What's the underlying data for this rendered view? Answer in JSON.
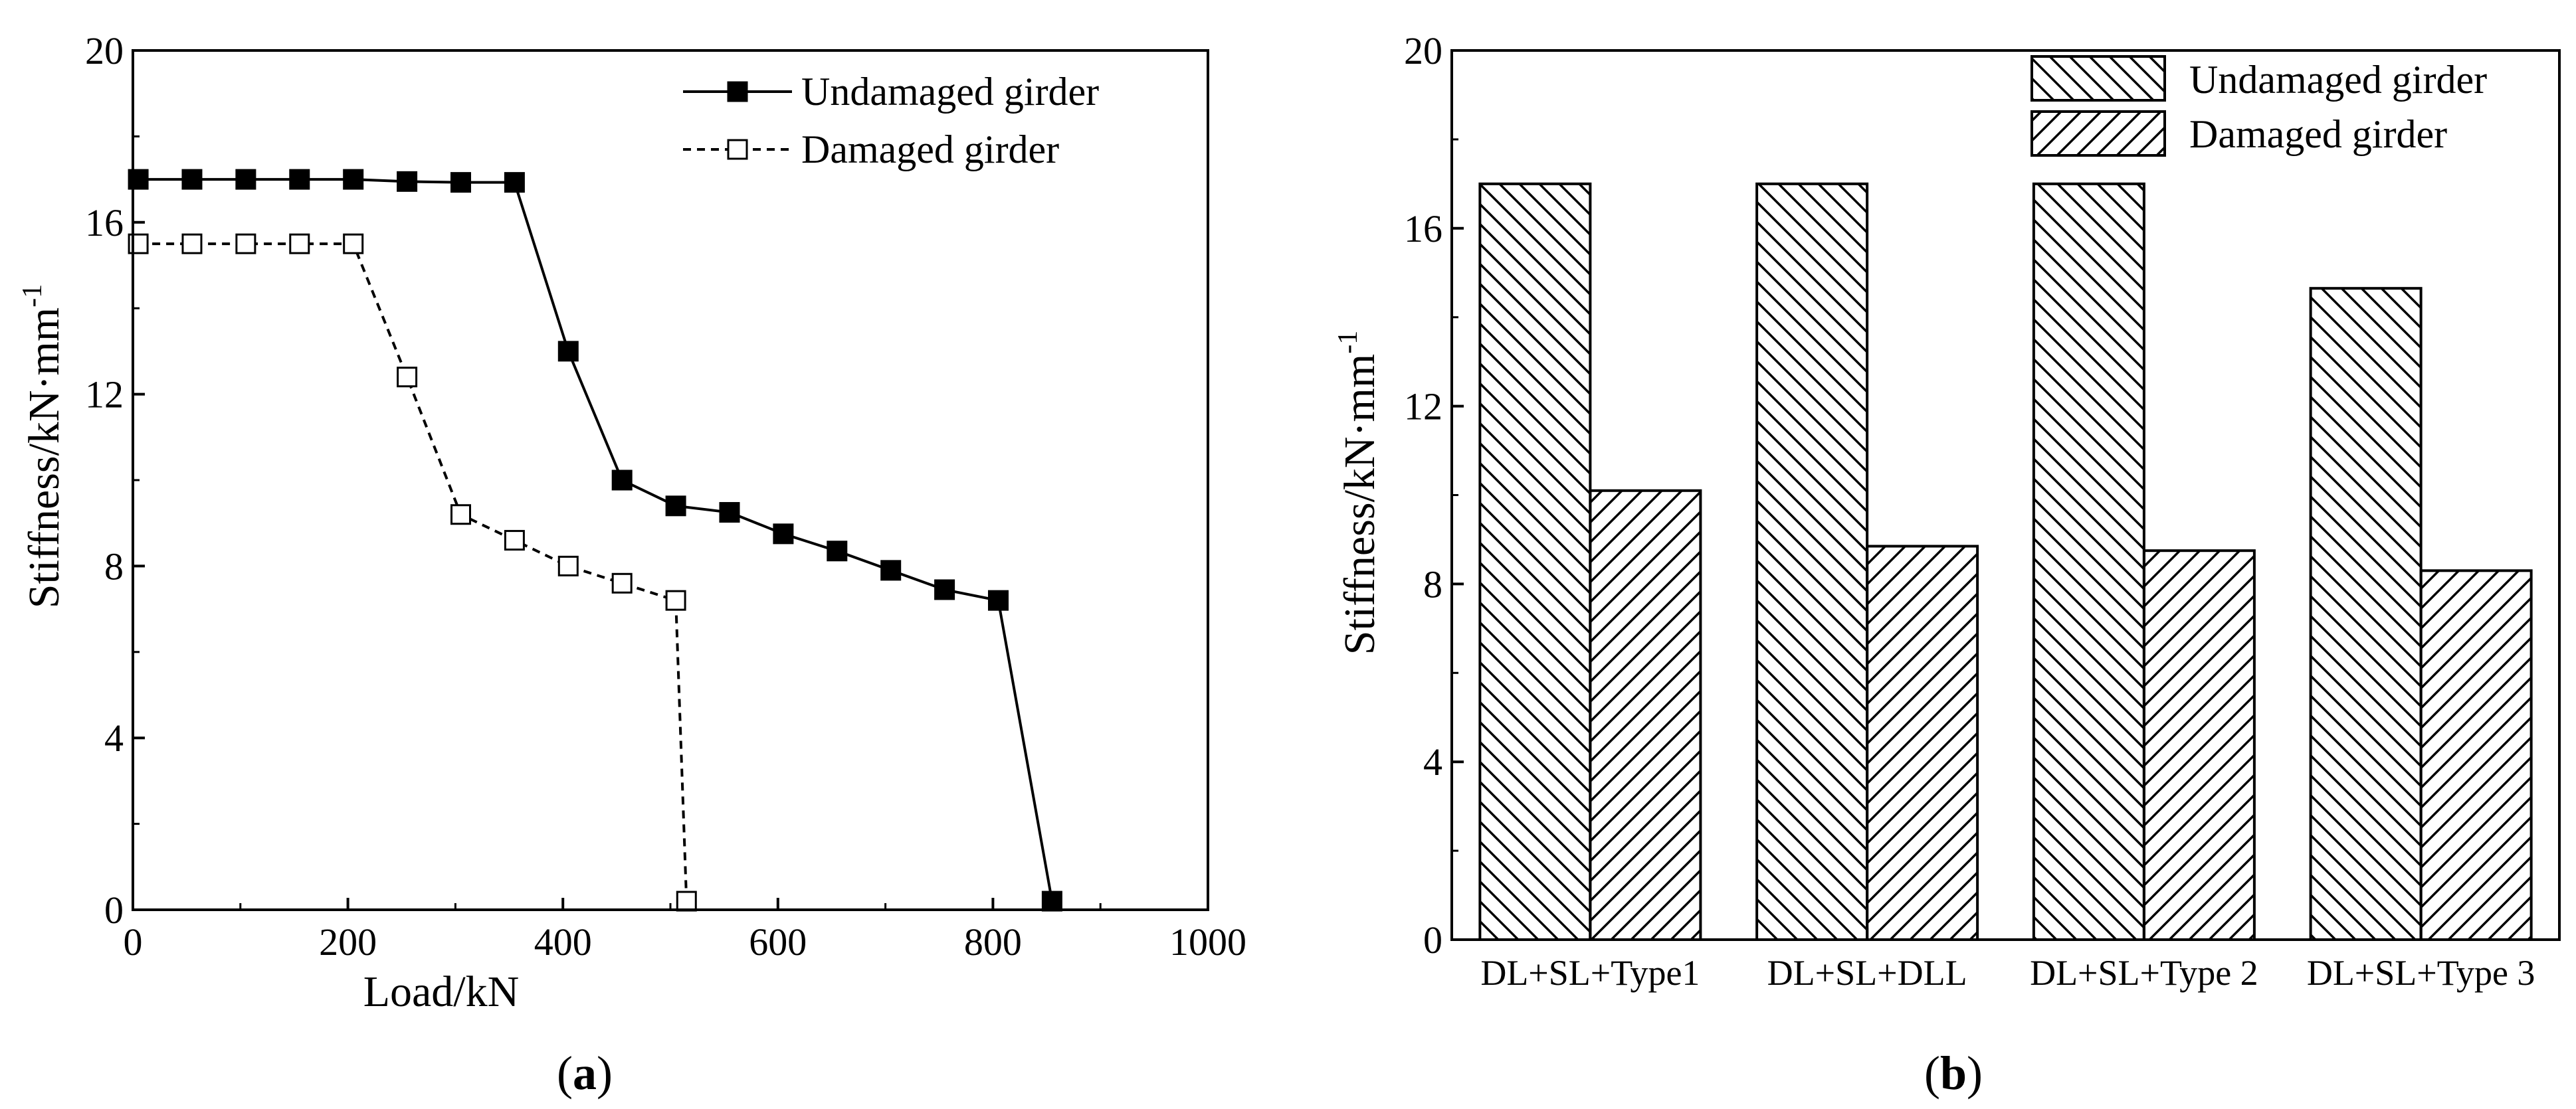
{
  "chart_data": [
    {
      "type": "line",
      "panel": "a",
      "caption": "(a)",
      "caption_open": "(",
      "caption_letter": "a",
      "caption_close": ")",
      "title": "",
      "xlabel": "Load/kN",
      "ylabel": "Stiffness/kN·mm",
      "ylabel_exp": "-1",
      "xlim": [
        0,
        1000
      ],
      "ylim": [
        0,
        20
      ],
      "xticks": [
        0,
        200,
        400,
        600,
        800,
        1000
      ],
      "yticks": [
        0,
        4,
        8,
        12,
        16,
        20
      ],
      "legend_position": "top-right",
      "series": [
        {
          "name": "Undamaged girder",
          "style": "solid",
          "marker": "filled-square",
          "x": [
            5,
            55,
            105,
            155,
            205,
            255,
            305,
            355,
            405,
            455,
            505,
            555,
            605,
            655,
            705,
            755,
            805,
            855
          ],
          "y": [
            17.0,
            17.0,
            17.0,
            17.0,
            17.0,
            16.95,
            16.93,
            16.93,
            13.0,
            10.0,
            9.4,
            9.25,
            8.75,
            8.35,
            7.9,
            7.45,
            7.2,
            0.2
          ]
        },
        {
          "name": "Damaged girder",
          "style": "dashed",
          "marker": "open-square",
          "x": [
            5,
            55,
            105,
            155,
            205,
            255,
            305,
            355,
            405,
            455,
            505,
            515
          ],
          "y": [
            15.5,
            15.5,
            15.5,
            15.5,
            15.5,
            12.4,
            9.2,
            8.6,
            8.0,
            7.6,
            7.2,
            0.2
          ]
        }
      ]
    },
    {
      "type": "bar",
      "panel": "b",
      "caption": "(b)",
      "caption_open": "(",
      "caption_letter": "b",
      "caption_close": ")",
      "title": "",
      "xlabel": "",
      "ylabel": "Stiffness/kN·mm",
      "ylabel_exp": "-1",
      "ylim": [
        0,
        20
      ],
      "yticks": [
        0,
        4,
        8,
        12,
        16,
        20
      ],
      "legend_position": "top-right",
      "categories": [
        "DL+SL+Type1",
        "DL+SL+DLL",
        "DL+SL+Type 2",
        "DL+SL+Type 3"
      ],
      "series": [
        {
          "name": "Undamaged girder",
          "hatch": "backslash",
          "values": [
            17.0,
            17.0,
            17.0,
            14.65
          ]
        },
        {
          "name": "Damaged girder",
          "hatch": "forward-slash",
          "values": [
            10.1,
            8.85,
            8.75,
            8.3
          ]
        }
      ]
    }
  ]
}
